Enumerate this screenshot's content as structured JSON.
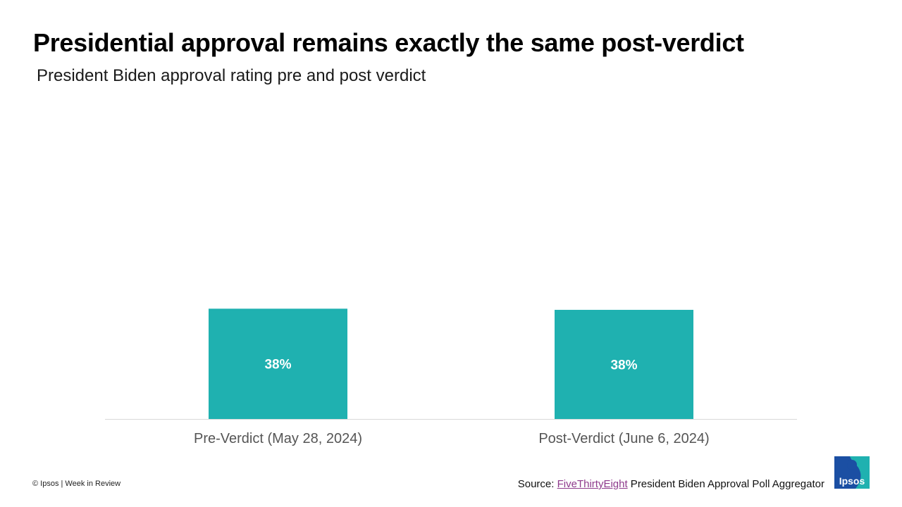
{
  "header": {
    "title": "Presidential approval remains exactly the same post-verdict",
    "subtitle": "President Biden approval rating pre and post verdict"
  },
  "chart_data": {
    "type": "bar",
    "categories": [
      "Pre-Verdict (May 28, 2024)",
      "Post-Verdict (June 6, 2024)"
    ],
    "values": [
      38.2,
      37.8
    ],
    "data_labels": [
      "38%",
      "38%"
    ],
    "unit": "%",
    "ylim": [
      0,
      100
    ],
    "grid": false,
    "legend": "none",
    "bar_color": "#1fb1b0",
    "label_color": "#ffffff"
  },
  "footer": {
    "copyright": "© Ipsos | Week in Review",
    "source_prefix": "Source: ",
    "source_link": "FiveThirtyEight",
    "source_suffix": " President Biden Approval Poll Aggregator",
    "link_color": "#8e3a8c"
  },
  "logo": {
    "text": "Ipsos",
    "colors": [
      "#1b4fa3",
      "#1fb1b0"
    ]
  }
}
